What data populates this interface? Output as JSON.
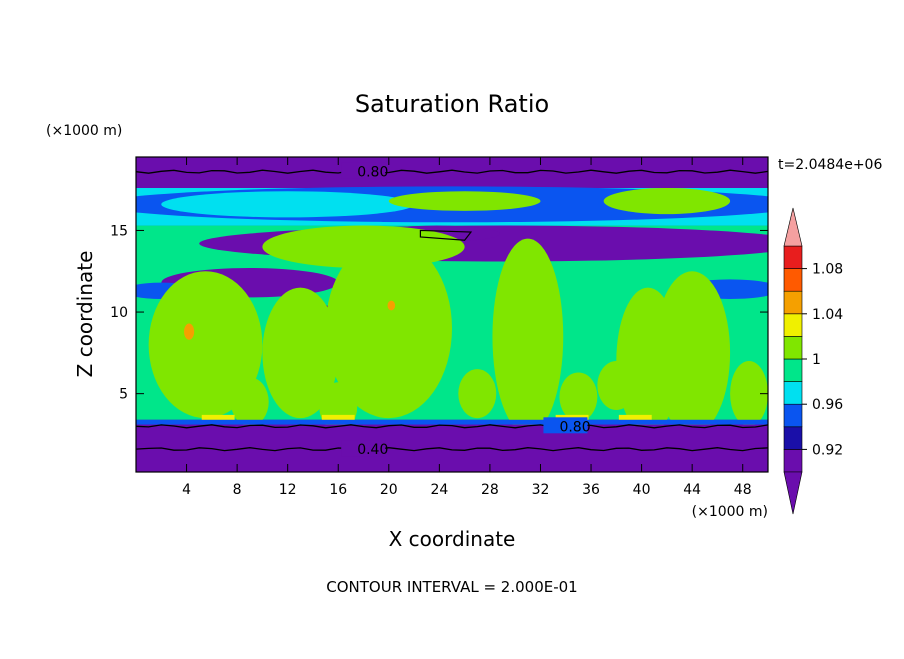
{
  "chart_data": {
    "type": "heatmap",
    "title": "Saturation Ratio",
    "xlabel": "X coordinate",
    "ylabel": "Z coordinate",
    "x_unit_label": "(×1000 m)",
    "y_unit_label": "(×1000 m)",
    "xlim": [
      0,
      50
    ],
    "ylim": [
      0.2,
      19.5
    ],
    "x_ticks": [
      4,
      8,
      12,
      16,
      20,
      24,
      28,
      32,
      36,
      40,
      44,
      48
    ],
    "y_ticks": [
      5,
      10,
      15
    ],
    "time_label": "t=2.0484e+06",
    "footer": "CONTOUR INTERVAL = 2.000E-01",
    "contour_lines": [
      {
        "label": "0.80",
        "z": 18.6
      },
      {
        "label": "0.80",
        "z": 3.0
      },
      {
        "label": "0.40",
        "z": 1.6
      }
    ],
    "colorbar": {
      "levels": [
        0.9,
        0.92,
        0.94,
        0.96,
        0.98,
        1.0,
        1.02,
        1.04,
        1.06,
        1.08,
        1.1
      ],
      "tick_labels": [
        "0.92",
        "0.96",
        "1",
        "1.04",
        "1.08"
      ],
      "tick_values": [
        0.92,
        0.96,
        1.0,
        1.04,
        1.08
      ],
      "colors": [
        "#6a0dad",
        "#1a0fa8",
        "#0a55f0",
        "#00e0f0",
        "#00e68a",
        "#80e600",
        "#f0f000",
        "#f5a000",
        "#ff5a00",
        "#e81e1e"
      ],
      "under_color": "#6a0dad",
      "over_color": "#f5a0a0"
    },
    "colors": {
      "dry": "#6a0dad",
      "deep_blue": "#1a0fa8",
      "blue": "#0a55f0",
      "cyan": "#00e0f0",
      "teal_green": "#00e68a",
      "lime": "#80e600",
      "yellow": "#f0f000",
      "orange": "#f5a000"
    }
  }
}
